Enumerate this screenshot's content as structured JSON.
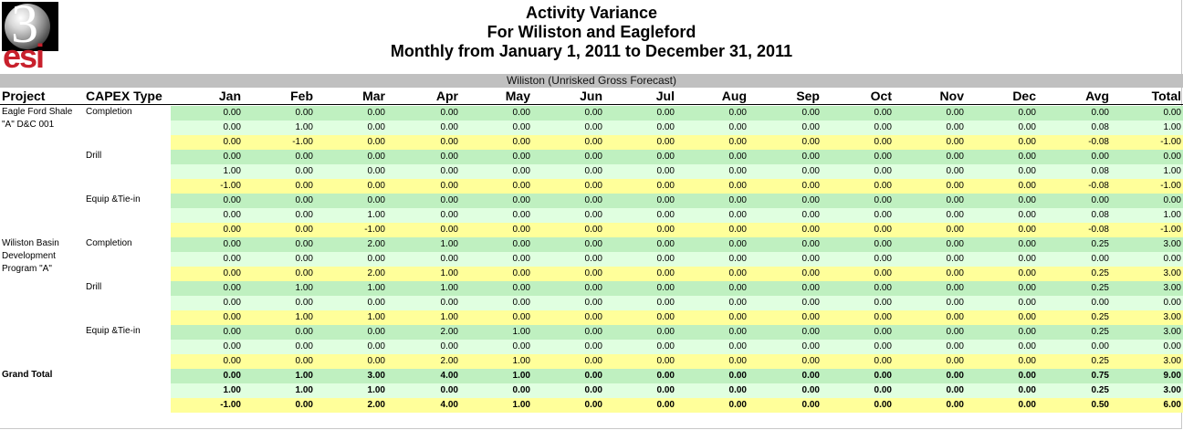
{
  "logo": {
    "number": "3",
    "letters": "esi"
  },
  "titles": [
    "Activity Variance",
    "For Wiliston and Eagleford",
    "Monthly from January 1, 2011 to December 31, 2011"
  ],
  "section_label": "Wiliston (Unrisked Gross Forecast)",
  "columns": {
    "project": "Project",
    "capex": "CAPEX Type",
    "periods": [
      "Jan",
      "Feb",
      "Mar",
      "Apr",
      "May",
      "Jun",
      "Jul",
      "Aug",
      "Sep",
      "Oct",
      "Nov",
      "Dec",
      "Avg",
      "Total"
    ]
  },
  "projects": [
    {
      "name_lines": [
        "Eagle Ford Shale",
        "\"A\" D&C 001"
      ],
      "groups": [
        {
          "capex": "Completion",
          "rows": [
            [
              "0.00",
              "0.00",
              "0.00",
              "0.00",
              "0.00",
              "0.00",
              "0.00",
              "0.00",
              "0.00",
              "0.00",
              "0.00",
              "0.00",
              "0.00",
              "0.00"
            ],
            [
              "0.00",
              "1.00",
              "0.00",
              "0.00",
              "0.00",
              "0.00",
              "0.00",
              "0.00",
              "0.00",
              "0.00",
              "0.00",
              "0.00",
              "0.08",
              "1.00"
            ],
            [
              "0.00",
              "-1.00",
              "0.00",
              "0.00",
              "0.00",
              "0.00",
              "0.00",
              "0.00",
              "0.00",
              "0.00",
              "0.00",
              "0.00",
              "-0.08",
              "-1.00"
            ]
          ]
        },
        {
          "capex": "Drill",
          "rows": [
            [
              "0.00",
              "0.00",
              "0.00",
              "0.00",
              "0.00",
              "0.00",
              "0.00",
              "0.00",
              "0.00",
              "0.00",
              "0.00",
              "0.00",
              "0.00",
              "0.00"
            ],
            [
              "1.00",
              "0.00",
              "0.00",
              "0.00",
              "0.00",
              "0.00",
              "0.00",
              "0.00",
              "0.00",
              "0.00",
              "0.00",
              "0.00",
              "0.08",
              "1.00"
            ],
            [
              "-1.00",
              "0.00",
              "0.00",
              "0.00",
              "0.00",
              "0.00",
              "0.00",
              "0.00",
              "0.00",
              "0.00",
              "0.00",
              "0.00",
              "-0.08",
              "-1.00"
            ]
          ]
        },
        {
          "capex": "Equip &Tie-in",
          "rows": [
            [
              "0.00",
              "0.00",
              "0.00",
              "0.00",
              "0.00",
              "0.00",
              "0.00",
              "0.00",
              "0.00",
              "0.00",
              "0.00",
              "0.00",
              "0.00",
              "0.00"
            ],
            [
              "0.00",
              "0.00",
              "1.00",
              "0.00",
              "0.00",
              "0.00",
              "0.00",
              "0.00",
              "0.00",
              "0.00",
              "0.00",
              "0.00",
              "0.08",
              "1.00"
            ],
            [
              "0.00",
              "0.00",
              "-1.00",
              "0.00",
              "0.00",
              "0.00",
              "0.00",
              "0.00",
              "0.00",
              "0.00",
              "0.00",
              "0.00",
              "-0.08",
              "-1.00"
            ]
          ]
        }
      ]
    },
    {
      "name_lines": [
        "Wiliston Basin",
        "Development",
        "Program \"A\""
      ],
      "groups": [
        {
          "capex": "Completion",
          "rows": [
            [
              "0.00",
              "0.00",
              "2.00",
              "1.00",
              "0.00",
              "0.00",
              "0.00",
              "0.00",
              "0.00",
              "0.00",
              "0.00",
              "0.00",
              "0.25",
              "3.00"
            ],
            [
              "0.00",
              "0.00",
              "0.00",
              "0.00",
              "0.00",
              "0.00",
              "0.00",
              "0.00",
              "0.00",
              "0.00",
              "0.00",
              "0.00",
              "0.00",
              "0.00"
            ],
            [
              "0.00",
              "0.00",
              "2.00",
              "1.00",
              "0.00",
              "0.00",
              "0.00",
              "0.00",
              "0.00",
              "0.00",
              "0.00",
              "0.00",
              "0.25",
              "3.00"
            ]
          ]
        },
        {
          "capex": "Drill",
          "rows": [
            [
              "0.00",
              "1.00",
              "1.00",
              "1.00",
              "0.00",
              "0.00",
              "0.00",
              "0.00",
              "0.00",
              "0.00",
              "0.00",
              "0.00",
              "0.25",
              "3.00"
            ],
            [
              "0.00",
              "0.00",
              "0.00",
              "0.00",
              "0.00",
              "0.00",
              "0.00",
              "0.00",
              "0.00",
              "0.00",
              "0.00",
              "0.00",
              "0.00",
              "0.00"
            ],
            [
              "0.00",
              "1.00",
              "1.00",
              "1.00",
              "0.00",
              "0.00",
              "0.00",
              "0.00",
              "0.00",
              "0.00",
              "0.00",
              "0.00",
              "0.25",
              "3.00"
            ]
          ]
        },
        {
          "capex": "Equip &Tie-in",
          "rows": [
            [
              "0.00",
              "0.00",
              "0.00",
              "2.00",
              "1.00",
              "0.00",
              "0.00",
              "0.00",
              "0.00",
              "0.00",
              "0.00",
              "0.00",
              "0.25",
              "3.00"
            ],
            [
              "0.00",
              "0.00",
              "0.00",
              "0.00",
              "0.00",
              "0.00",
              "0.00",
              "0.00",
              "0.00",
              "0.00",
              "0.00",
              "0.00",
              "0.00",
              "0.00"
            ],
            [
              "0.00",
              "0.00",
              "0.00",
              "2.00",
              "1.00",
              "0.00",
              "0.00",
              "0.00",
              "0.00",
              "0.00",
              "0.00",
              "0.00",
              "0.25",
              "3.00"
            ]
          ]
        }
      ]
    }
  ],
  "grand_total": {
    "label": "Grand Total",
    "rows": [
      [
        "0.00",
        "1.00",
        "3.00",
        "4.00",
        "1.00",
        "0.00",
        "0.00",
        "0.00",
        "0.00",
        "0.00",
        "0.00",
        "0.00",
        "0.75",
        "9.00"
      ],
      [
        "1.00",
        "1.00",
        "1.00",
        "0.00",
        "0.00",
        "0.00",
        "0.00",
        "0.00",
        "0.00",
        "0.00",
        "0.00",
        "0.00",
        "0.25",
        "3.00"
      ],
      [
        "-1.00",
        "0.00",
        "2.00",
        "4.00",
        "1.00",
        "0.00",
        "0.00",
        "0.00",
        "0.00",
        "0.00",
        "0.00",
        "0.00",
        "0.50",
        "6.00"
      ]
    ]
  },
  "colors": {
    "row_forecast": "#bff0c0",
    "row_actual": "#e0ffe0",
    "row_variance": "#ffff9a",
    "banner": "#c0c0c0",
    "logo_letters": "#c8202c"
  }
}
